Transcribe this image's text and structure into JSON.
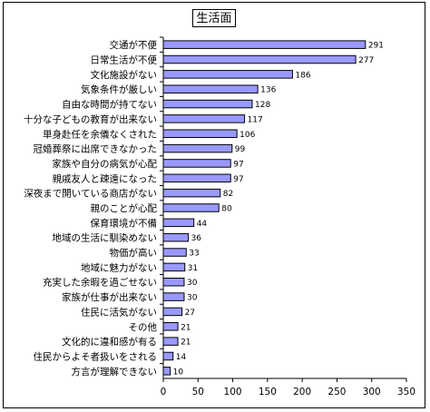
{
  "chart_data": {
    "type": "bar",
    "orientation": "horizontal",
    "title": "生活面",
    "categories": [
      "交通が不便",
      "日常生活が不便",
      "文化施設がない",
      "気象条件が厳しい",
      "自由な時間が持てない",
      "十分な子どもの教育が出来ない",
      "単身赴任を余儀なくされた",
      "冠婚葬祭に出席できなかった",
      "家族や自分の病気が心配",
      "親戚友人と疎遠になった",
      "深夜まで開いている商店がない",
      "親のことが心配",
      "保育環境が不備",
      "地域の生活に馴染めない",
      "物価が高い",
      "地域に魅力がない",
      "充実した余暇を過ごせない",
      "家族が仕事が出来ない",
      "住民に活気がない",
      "その他",
      "文化的に違和感が有る",
      "住民からよそ者扱いをされる",
      "方言が理解できない"
    ],
    "values": [
      291,
      277,
      186,
      136,
      128,
      117,
      106,
      99,
      97,
      97,
      82,
      80,
      44,
      36,
      33,
      31,
      30,
      30,
      27,
      21,
      21,
      14,
      10
    ],
    "xlim": [
      0,
      350
    ],
    "xticks": [
      0,
      50,
      100,
      150,
      200,
      250,
      300,
      350
    ],
    "xlabel": "",
    "ylabel": "",
    "grid": false,
    "legend": "none",
    "bar_color": "#9999ff",
    "bar_edge_color": "#000000"
  }
}
